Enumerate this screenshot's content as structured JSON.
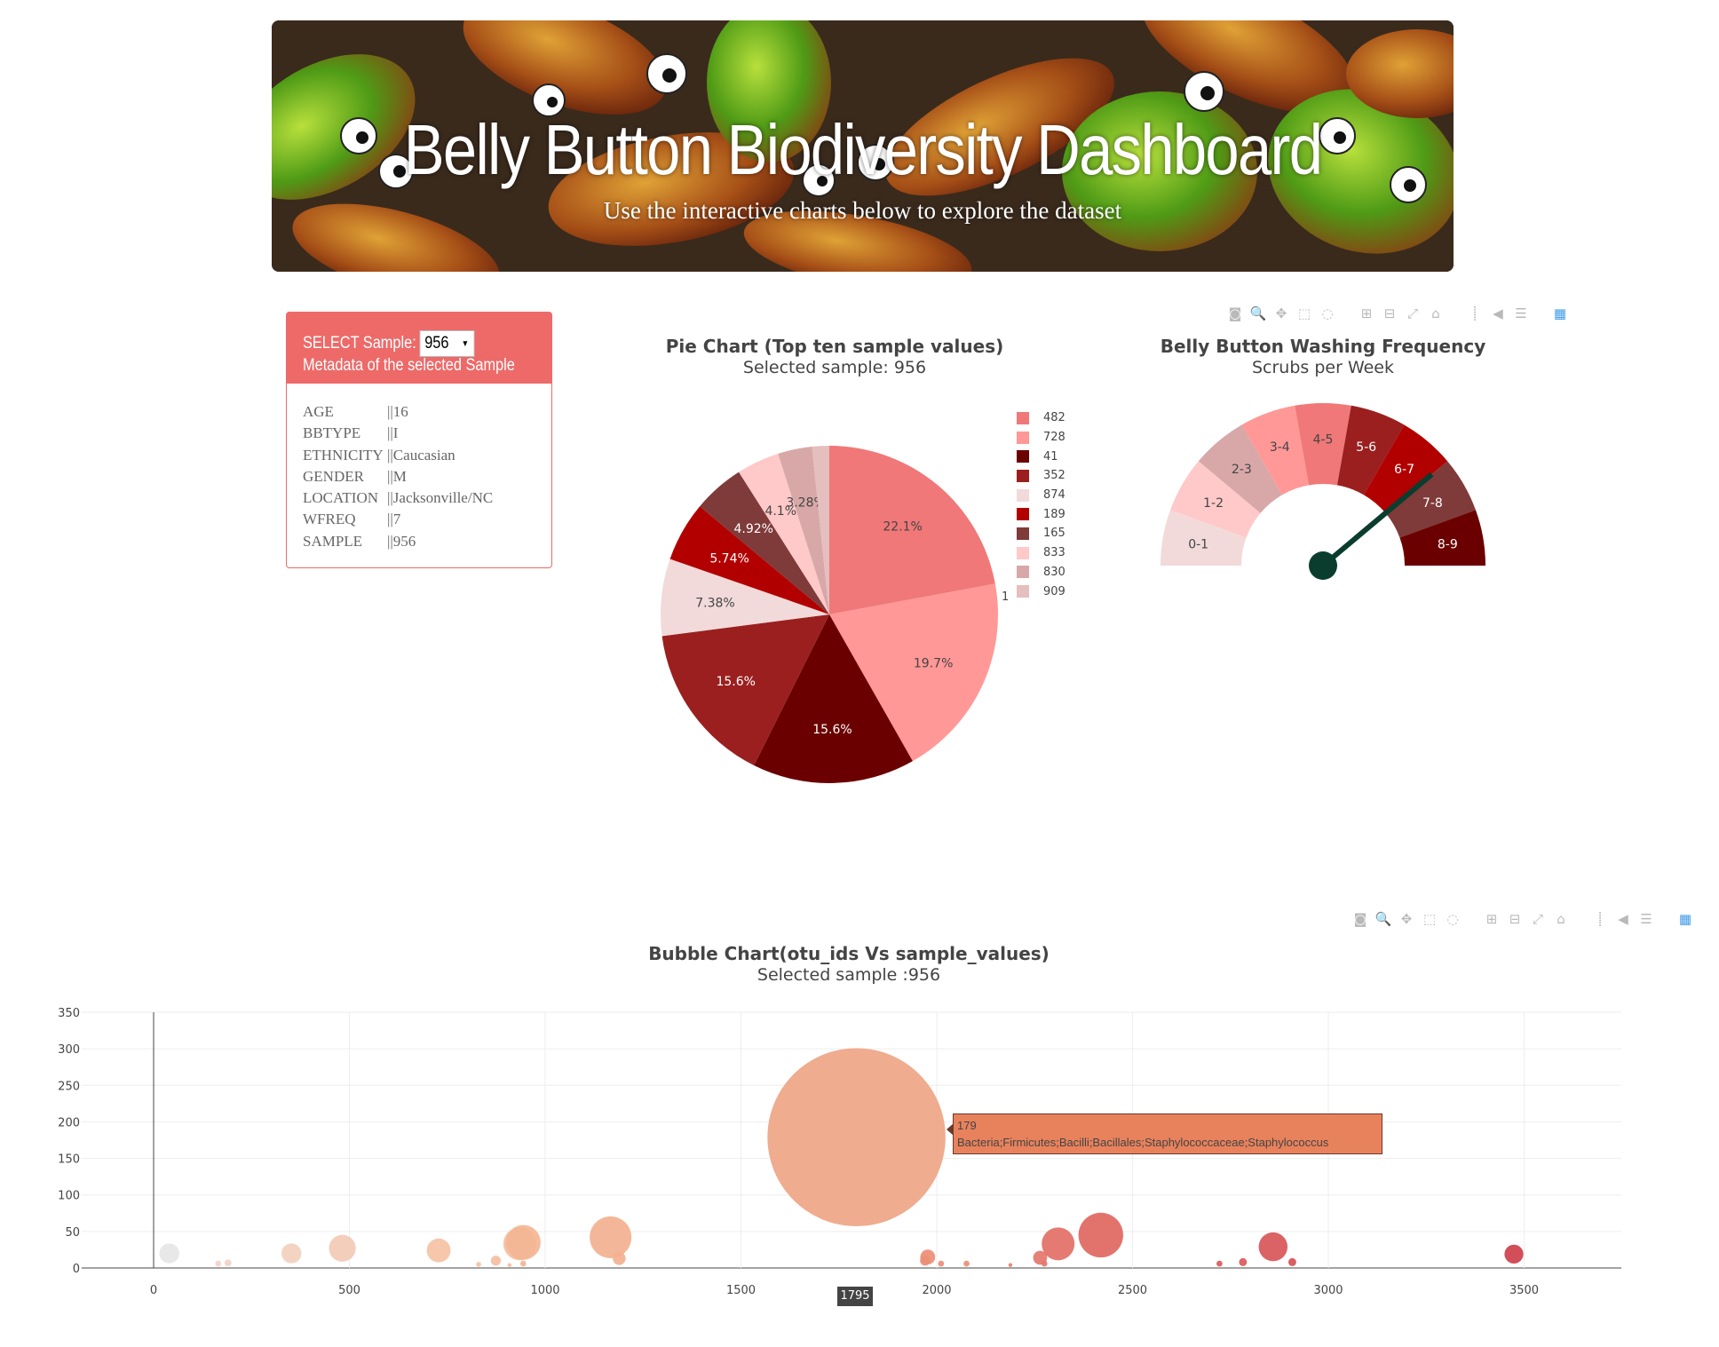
{
  "banner": {
    "title": "Belly Button Biodiversity Dashboard",
    "subtitle": "Use the interactive charts below to explore the dataset"
  },
  "panel": {
    "select_label": "SELECT Sample:",
    "selected_sample": "956",
    "metadata_title": "Metadata of the selected Sample",
    "metadata": [
      {
        "key": "AGE",
        "value": "||16"
      },
      {
        "key": "BBTYPE",
        "value": "||I"
      },
      {
        "key": "ETHNICITY",
        "value": "||Caucasian"
      },
      {
        "key": "GENDER",
        "value": "||M"
      },
      {
        "key": "LOCATION",
        "value": "||Jacksonville/NC"
      },
      {
        "key": "WFREQ",
        "value": "||7"
      },
      {
        "key": "SAMPLE",
        "value": "||956"
      }
    ]
  },
  "toolbar_icons": [
    "camera-icon",
    "zoom-icon",
    "pan-icon",
    "box-select-icon",
    "lasso-icon",
    "zoom-in-icon",
    "zoom-out-icon",
    "autoscale-icon",
    "home-icon",
    "spike-lines-icon",
    "hover-closest-icon",
    "hover-compare-icon",
    "plotly-logo-icon"
  ],
  "pie": {
    "title": "Pie Chart (Top ten sample values)",
    "subtitle": "Selected sample: 956",
    "edge_label": "1"
  },
  "gauge": {
    "title": "Belly Button Washing Frequency",
    "subtitle": "Scrubs per Week"
  },
  "bubble": {
    "title": "Bubble Chart(otu_ids Vs sample_values)",
    "subtitle": "Selected sample :956",
    "tooltip_value": "179",
    "tooltip_label": "Bacteria;Firmicutes;Bacilli;Bacillales;Staphylococcaceae;Staphylococcus",
    "hover_x": "1795"
  },
  "chart_data": [
    {
      "type": "pie",
      "title": "Pie Chart (Top ten sample values)",
      "labels": [
        "482",
        "728",
        "41",
        "352",
        "874",
        "189",
        "165",
        "833",
        "830",
        "909"
      ],
      "values": [
        22.1,
        19.7,
        15.6,
        15.6,
        7.38,
        5.74,
        4.92,
        4.1,
        3.28,
        1.64
      ],
      "text_labels": [
        "22.1%",
        "19.7%",
        "15.6%",
        "15.6%",
        "7.38%",
        "5.74%",
        "4.92%",
        "4.1%",
        "3.28%",
        ""
      ],
      "colors": [
        "#f07878",
        "#ff9896",
        "#6b0000",
        "#9b1f1f",
        "#f2dada",
        "#b20000",
        "#7f3a3a",
        "#ffc9c9",
        "#d8a8a8",
        "#e5bebe"
      ]
    },
    {
      "type": "gauge",
      "title": "Belly Button Washing Frequency",
      "categories": [
        "0-1",
        "1-2",
        "2-3",
        "3-4",
        "4-5",
        "5-6",
        "6-7",
        "7-8",
        "8-9"
      ],
      "colors": [
        "#f2dada",
        "#ffc9c9",
        "#d8a8a8",
        "#ff9896",
        "#f07878",
        "#9b1f1f",
        "#b20000",
        "#7f3a3a",
        "#6b0000"
      ],
      "value": 7,
      "range": [
        0,
        9
      ]
    },
    {
      "type": "scatter",
      "title": "Bubble Chart(otu_ids Vs sample_values)",
      "xlim": [
        -200,
        3560
      ],
      "ylim": [
        0,
        350
      ],
      "xticks": [
        0,
        500,
        1000,
        1500,
        2000,
        2500,
        3000,
        3500
      ],
      "yticks": [
        0,
        50,
        100,
        150,
        200,
        250,
        300,
        350
      ],
      "points": [
        {
          "x": 40,
          "y": 20,
          "c": "#e6e6e6"
        },
        {
          "x": 165,
          "y": 6,
          "c": "#f2d4c8"
        },
        {
          "x": 190,
          "y": 7,
          "c": "#f2d4c8"
        },
        {
          "x": 352,
          "y": 20,
          "c": "#f2d0bd"
        },
        {
          "x": 482,
          "y": 27,
          "c": "#f2cbb5"
        },
        {
          "x": 728,
          "y": 24,
          "c": "#f5c2a4"
        },
        {
          "x": 830,
          "y": 5,
          "c": "#f5c2a4"
        },
        {
          "x": 874,
          "y": 10,
          "c": "#f5be9f"
        },
        {
          "x": 909,
          "y": 4,
          "c": "#f5be9f"
        },
        {
          "x": 935,
          "y": 33,
          "c": "#f5be9f"
        },
        {
          "x": 944,
          "y": 35,
          "c": "#f3b694"
        },
        {
          "x": 944,
          "y": 6,
          "c": "#f3b694"
        },
        {
          "x": 1167,
          "y": 42,
          "c": "#f3b08f"
        },
        {
          "x": 1189,
          "y": 13,
          "c": "#f3b08f"
        },
        {
          "x": 1795,
          "y": 179,
          "c": "#eea584"
        },
        {
          "x": 1970,
          "y": 10,
          "c": "#ec8e75"
        },
        {
          "x": 1977,
          "y": 15,
          "c": "#ec8e75"
        },
        {
          "x": 2011,
          "y": 6,
          "c": "#ec8e75"
        },
        {
          "x": 2076,
          "y": 6,
          "c": "#ec8e75"
        },
        {
          "x": 2188,
          "y": 4,
          "c": "#e8826d"
        },
        {
          "x": 2264,
          "y": 14,
          "c": "#e4766a"
        },
        {
          "x": 2275,
          "y": 6,
          "c": "#e4766a"
        },
        {
          "x": 2310,
          "y": 33,
          "c": "#e26f66"
        },
        {
          "x": 2419,
          "y": 45,
          "c": "#e0675f"
        },
        {
          "x": 2722,
          "y": 6,
          "c": "#db5a5a"
        },
        {
          "x": 2782,
          "y": 8,
          "c": "#db5a5a"
        },
        {
          "x": 2859,
          "y": 29,
          "c": "#d85658"
        },
        {
          "x": 2908,
          "y": 8,
          "c": "#d65052"
        },
        {
          "x": 3474,
          "y": 19,
          "c": "#ce3f4b"
        }
      ]
    }
  ]
}
